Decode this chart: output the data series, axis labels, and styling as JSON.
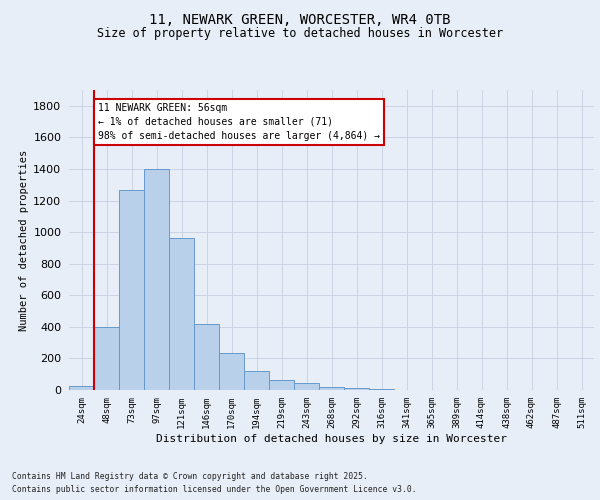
{
  "title1": "11, NEWARK GREEN, WORCESTER, WR4 0TB",
  "title2": "Size of property relative to detached houses in Worcester",
  "xlabel": "Distribution of detached houses by size in Worcester",
  "ylabel": "Number of detached properties",
  "categories": [
    "24sqm",
    "48sqm",
    "73sqm",
    "97sqm",
    "121sqm",
    "146sqm",
    "170sqm",
    "194sqm",
    "219sqm",
    "243sqm",
    "268sqm",
    "292sqm",
    "316sqm",
    "341sqm",
    "365sqm",
    "389sqm",
    "414sqm",
    "438sqm",
    "462sqm",
    "487sqm",
    "511sqm"
  ],
  "values": [
    25,
    400,
    1265,
    1400,
    960,
    415,
    235,
    120,
    65,
    45,
    20,
    10,
    5,
    3,
    2,
    1,
    0,
    0,
    0,
    0,
    0
  ],
  "bar_color": "#b8d0ea",
  "bar_edge_color": "#6699cc",
  "vline_color": "#cc0000",
  "vline_x": 0.5,
  "annotation_text": "11 NEWARK GREEN: 56sqm\n← 1% of detached houses are smaller (71)\n98% of semi-detached houses are larger (4,864) →",
  "annotation_box_color": "#ffffff",
  "annotation_box_edge": "#cc0000",
  "ylim": [
    0,
    1900
  ],
  "yticks": [
    0,
    200,
    400,
    600,
    800,
    1000,
    1200,
    1400,
    1600,
    1800
  ],
  "footer1": "Contains HM Land Registry data © Crown copyright and database right 2025.",
  "footer2": "Contains public sector information licensed under the Open Government Licence v3.0.",
  "bg_color": "#e8eef8",
  "grid_color": "#c5cfe0",
  "fig_width": 6.0,
  "fig_height": 5.0,
  "dpi": 100,
  "title1_fontsize": 10,
  "title2_fontsize": 8.5,
  "ylabel_fontsize": 7.5,
  "xlabel_fontsize": 8,
  "ytick_fontsize": 8,
  "xtick_fontsize": 6.5,
  "annotation_fontsize": 7,
  "footer_fontsize": 5.8
}
